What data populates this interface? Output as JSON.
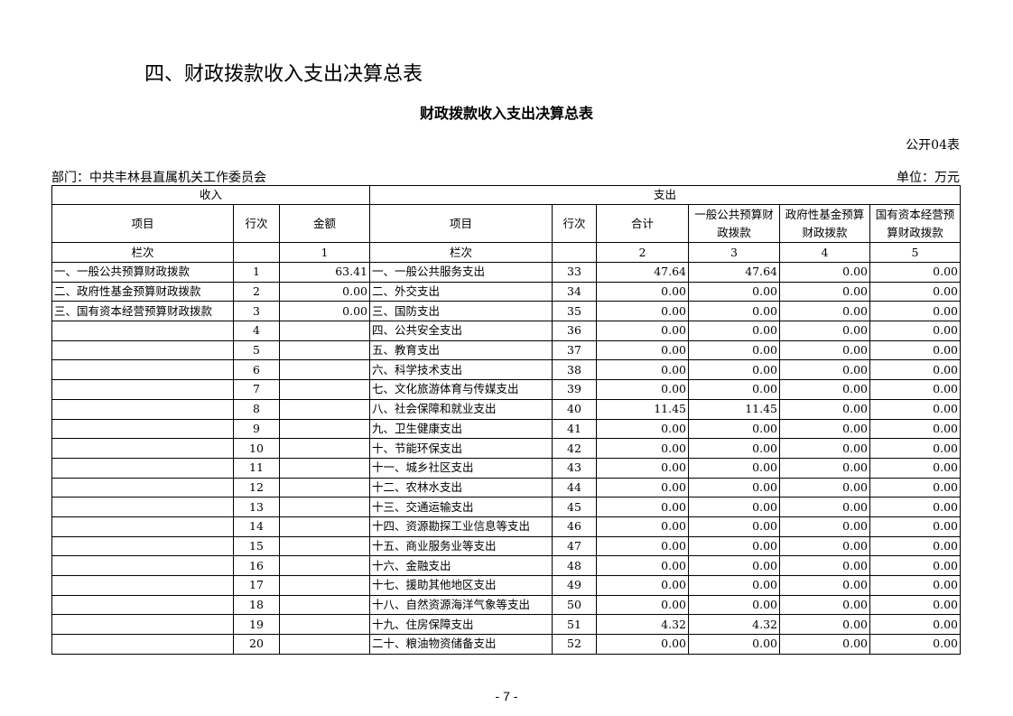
{
  "heading": "四、财政拨款收入支出决算总表",
  "table_title": "财政拨款收入支出决算总表",
  "table_code": "公开04表",
  "department": "部门：中共丰林县直属机关工作委员会",
  "unit": "单位：万元",
  "page_number": "- 7 -",
  "headers": {
    "income": "收入",
    "expense": "支出",
    "item": "项目",
    "row_no": "行次",
    "amount": "金额",
    "total": "合计",
    "general": "一般公共预算财政拨款",
    "fund": "政府性基金预算财政拨款",
    "state": "国有资本经营预算财政拨款",
    "col_label": "栏次",
    "col1": "1",
    "col2": "2",
    "col3": "3",
    "col4": "4",
    "col5": "5"
  },
  "rows": [
    {
      "in_item": "一、一般公共预算财政拨款",
      "in_no": "1",
      "in_amt": "63.41",
      "ex_item": "一、一般公共服务支出",
      "ex_no": "33",
      "total": "47.64",
      "general": "47.64",
      "fund": "0.00",
      "state": "0.00"
    },
    {
      "in_item": "二、政府性基金预算财政拨款",
      "in_no": "2",
      "in_amt": "0.00",
      "ex_item": "二、外交支出",
      "ex_no": "34",
      "total": "0.00",
      "general": "0.00",
      "fund": "0.00",
      "state": "0.00"
    },
    {
      "in_item": "三、国有资本经营预算财政拨款",
      "in_no": "3",
      "in_amt": "0.00",
      "ex_item": "三、国防支出",
      "ex_no": "35",
      "total": "0.00",
      "general": "0.00",
      "fund": "0.00",
      "state": "0.00"
    },
    {
      "in_item": "",
      "in_no": "4",
      "in_amt": "",
      "ex_item": "四、公共安全支出",
      "ex_no": "36",
      "total": "0.00",
      "general": "0.00",
      "fund": "0.00",
      "state": "0.00"
    },
    {
      "in_item": "",
      "in_no": "5",
      "in_amt": "",
      "ex_item": "五、教育支出",
      "ex_no": "37",
      "total": "0.00",
      "general": "0.00",
      "fund": "0.00",
      "state": "0.00"
    },
    {
      "in_item": "",
      "in_no": "6",
      "in_amt": "",
      "ex_item": "六、科学技术支出",
      "ex_no": "38",
      "total": "0.00",
      "general": "0.00",
      "fund": "0.00",
      "state": "0.00"
    },
    {
      "in_item": "",
      "in_no": "7",
      "in_amt": "",
      "ex_item": "七、文化旅游体育与传媒支出",
      "ex_no": "39",
      "total": "0.00",
      "general": "0.00",
      "fund": "0.00",
      "state": "0.00"
    },
    {
      "in_item": "",
      "in_no": "8",
      "in_amt": "",
      "ex_item": "八、社会保障和就业支出",
      "ex_no": "40",
      "total": "11.45",
      "general": "11.45",
      "fund": "0.00",
      "state": "0.00"
    },
    {
      "in_item": "",
      "in_no": "9",
      "in_amt": "",
      "ex_item": "九、卫生健康支出",
      "ex_no": "41",
      "total": "0.00",
      "general": "0.00",
      "fund": "0.00",
      "state": "0.00"
    },
    {
      "in_item": "",
      "in_no": "10",
      "in_amt": "",
      "ex_item": "十、节能环保支出",
      "ex_no": "42",
      "total": "0.00",
      "general": "0.00",
      "fund": "0.00",
      "state": "0.00"
    },
    {
      "in_item": "",
      "in_no": "11",
      "in_amt": "",
      "ex_item": "十一、城乡社区支出",
      "ex_no": "43",
      "total": "0.00",
      "general": "0.00",
      "fund": "0.00",
      "state": "0.00"
    },
    {
      "in_item": "",
      "in_no": "12",
      "in_amt": "",
      "ex_item": "十二、农林水支出",
      "ex_no": "44",
      "total": "0.00",
      "general": "0.00",
      "fund": "0.00",
      "state": "0.00"
    },
    {
      "in_item": "",
      "in_no": "13",
      "in_amt": "",
      "ex_item": "十三、交通运输支出",
      "ex_no": "45",
      "total": "0.00",
      "general": "0.00",
      "fund": "0.00",
      "state": "0.00"
    },
    {
      "in_item": "",
      "in_no": "14",
      "in_amt": "",
      "ex_item": "十四、资源勘探工业信息等支出",
      "ex_no": "46",
      "total": "0.00",
      "general": "0.00",
      "fund": "0.00",
      "state": "0.00"
    },
    {
      "in_item": "",
      "in_no": "15",
      "in_amt": "",
      "ex_item": "十五、商业服务业等支出",
      "ex_no": "47",
      "total": "0.00",
      "general": "0.00",
      "fund": "0.00",
      "state": "0.00"
    },
    {
      "in_item": "",
      "in_no": "16",
      "in_amt": "",
      "ex_item": "十六、金融支出",
      "ex_no": "48",
      "total": "0.00",
      "general": "0.00",
      "fund": "0.00",
      "state": "0.00"
    },
    {
      "in_item": "",
      "in_no": "17",
      "in_amt": "",
      "ex_item": "十七、援助其他地区支出",
      "ex_no": "49",
      "total": "0.00",
      "general": "0.00",
      "fund": "0.00",
      "state": "0.00"
    },
    {
      "in_item": "",
      "in_no": "18",
      "in_amt": "",
      "ex_item": "十八、自然资源海洋气象等支出",
      "ex_no": "50",
      "total": "0.00",
      "general": "0.00",
      "fund": "0.00",
      "state": "0.00"
    },
    {
      "in_item": "",
      "in_no": "19",
      "in_amt": "",
      "ex_item": "十九、住房保障支出",
      "ex_no": "51",
      "total": "4.32",
      "general": "4.32",
      "fund": "0.00",
      "state": "0.00"
    },
    {
      "in_item": "",
      "in_no": "20",
      "in_amt": "",
      "ex_item": "二十、粮油物资储备支出",
      "ex_no": "52",
      "total": "0.00",
      "general": "0.00",
      "fund": "0.00",
      "state": "0.00"
    }
  ]
}
